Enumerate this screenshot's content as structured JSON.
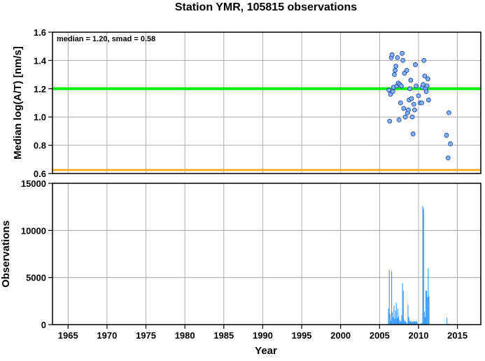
{
  "title": "Station YMR, 105815 observations",
  "colors": {
    "median_line": "#00ee00",
    "floor_line": "#ffa500",
    "points_fill": "#7fb2ff",
    "points_stroke": "#1f3c8f",
    "bars": "#3399ff",
    "grid": "#9a9a9a"
  },
  "chart_data": [
    {
      "type": "scatter",
      "annotation": "median = 1.20, smad = 0.58",
      "ylabel": "Median log(A/T) [nm/s]",
      "xlim": [
        1963,
        2018
      ],
      "ylim": [
        0.6,
        1.6
      ],
      "y_ticks": [
        "0.6",
        "0.8",
        "1.0",
        "1.2",
        "1.4",
        "1.6"
      ],
      "x_grid": [
        1965,
        1970,
        1975,
        1980,
        1985,
        1990,
        1995,
        2000,
        2005,
        2010,
        2015
      ],
      "grid": true,
      "reference_lines": [
        {
          "label": "median",
          "y": 1.2,
          "color": "green"
        },
        {
          "label": "floor",
          "y": 0.625,
          "color": "orange"
        }
      ],
      "points": [
        [
          2006.2,
          1.19
        ],
        [
          2006.3,
          0.97
        ],
        [
          2006.4,
          1.16
        ],
        [
          2006.5,
          1.42
        ],
        [
          2006.6,
          1.44
        ],
        [
          2006.7,
          1.18
        ],
        [
          2006.8,
          1.21
        ],
        [
          2006.9,
          1.3
        ],
        [
          2007.0,
          1.33
        ],
        [
          2007.1,
          1.36
        ],
        [
          2007.2,
          1.22
        ],
        [
          2007.3,
          1.42
        ],
        [
          2007.4,
          1.24
        ],
        [
          2007.5,
          0.98
        ],
        [
          2007.6,
          1.23
        ],
        [
          2007.7,
          1.1
        ],
        [
          2007.8,
          1.22
        ],
        [
          2007.9,
          1.45
        ],
        [
          2008.0,
          1.4
        ],
        [
          2008.1,
          1.06
        ],
        [
          2008.2,
          1.31
        ],
        [
          2008.3,
          1.0
        ],
        [
          2008.5,
          1.33
        ],
        [
          2008.6,
          1.03
        ],
        [
          2008.7,
          1.05
        ],
        [
          2008.8,
          1.12
        ],
        [
          2008.9,
          1.2
        ],
        [
          2009.0,
          1.26
        ],
        [
          2009.1,
          1.13
        ],
        [
          2009.2,
          1.0
        ],
        [
          2009.3,
          0.88
        ],
        [
          2009.4,
          1.09
        ],
        [
          2009.5,
          1.05
        ],
        [
          2009.6,
          1.37
        ],
        [
          2009.7,
          1.22
        ],
        [
          2010.0,
          1.15
        ],
        [
          2010.2,
          1.1
        ],
        [
          2010.4,
          1.1
        ],
        [
          2010.5,
          1.21
        ],
        [
          2010.6,
          1.23
        ],
        [
          2010.7,
          1.4
        ],
        [
          2010.8,
          1.29
        ],
        [
          2010.9,
          1.2
        ],
        [
          2011.0,
          1.18
        ],
        [
          2011.1,
          1.22
        ],
        [
          2011.2,
          1.27
        ],
        [
          2011.3,
          1.12
        ],
        [
          2013.6,
          0.87
        ],
        [
          2013.8,
          0.71
        ],
        [
          2013.9,
          1.03
        ],
        [
          2014.1,
          0.81
        ]
      ]
    },
    {
      "type": "bar",
      "xlabel": "Year",
      "ylabel": "Observations",
      "xlim": [
        1963,
        2018
      ],
      "ylim": [
        0,
        15000
      ],
      "y_ticks": [
        "0",
        "5000",
        "10000",
        "15000"
      ],
      "x_ticks": [
        "1965",
        "1970",
        "1975",
        "1980",
        "1985",
        "1990",
        "1995",
        "2000",
        "2005",
        "2010",
        "2015"
      ],
      "grid": true,
      "bins": [
        [
          2006.05,
          0
        ],
        [
          2006.15,
          1700
        ],
        [
          2006.25,
          5800
        ],
        [
          2006.35,
          1100
        ],
        [
          2006.45,
          400
        ],
        [
          2006.55,
          5700
        ],
        [
          2006.65,
          1300
        ],
        [
          2006.75,
          800
        ],
        [
          2006.85,
          2000
        ],
        [
          2006.95,
          600
        ],
        [
          2007.05,
          1500
        ],
        [
          2007.15,
          2300
        ],
        [
          2007.25,
          700
        ],
        [
          2007.35,
          1700
        ],
        [
          2007.45,
          900
        ],
        [
          2007.55,
          500
        ],
        [
          2007.65,
          300
        ],
        [
          2007.75,
          400
        ],
        [
          2007.85,
          1000
        ],
        [
          2007.95,
          4400
        ],
        [
          2008.05,
          3600
        ],
        [
          2008.15,
          500
        ],
        [
          2008.25,
          300
        ],
        [
          2008.35,
          400
        ],
        [
          2008.45,
          200
        ],
        [
          2008.55,
          100
        ],
        [
          2008.65,
          2100
        ],
        [
          2008.75,
          800
        ],
        [
          2008.85,
          400
        ],
        [
          2008.95,
          300
        ],
        [
          2009.05,
          400
        ],
        [
          2009.15,
          200
        ],
        [
          2009.25,
          300
        ],
        [
          2009.35,
          400
        ],
        [
          2009.45,
          300
        ],
        [
          2009.55,
          400
        ],
        [
          2009.65,
          300
        ],
        [
          2009.75,
          400
        ],
        [
          2009.85,
          200
        ],
        [
          2009.95,
          0
        ],
        [
          2010.05,
          0
        ],
        [
          2010.15,
          100
        ],
        [
          2010.25,
          100
        ],
        [
          2010.35,
          100
        ],
        [
          2010.45,
          200
        ],
        [
          2010.55,
          12600
        ],
        [
          2010.65,
          12300
        ],
        [
          2010.75,
          1400
        ],
        [
          2010.85,
          800
        ],
        [
          2010.95,
          3600
        ],
        [
          2011.05,
          3600
        ],
        [
          2011.15,
          2900
        ],
        [
          2011.25,
          6000
        ],
        [
          2011.35,
          3000
        ],
        [
          2011.45,
          0
        ],
        [
          2013.65,
          700
        ],
        [
          2013.75,
          100
        ],
        [
          2013.85,
          100
        ],
        [
          2013.95,
          50
        ],
        [
          2014.05,
          30
        ]
      ]
    }
  ]
}
